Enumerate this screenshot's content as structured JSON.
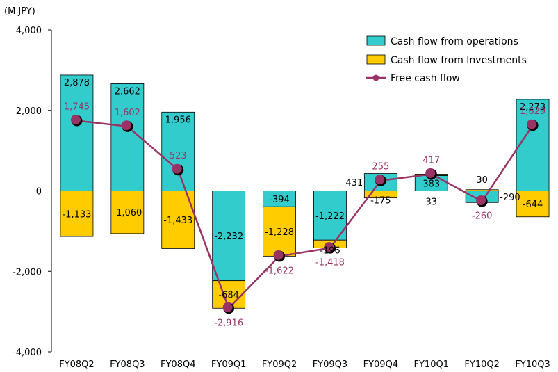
{
  "chart_data": {
    "type": "bar",
    "unit_label": "(M JPY)",
    "categories": [
      "FY08Q2",
      "FY08Q3",
      "FY08Q4",
      "FY09Q1",
      "FY09Q2",
      "FY09Q3",
      "FY09Q4",
      "FY10Q1",
      "FY10Q2",
      "FY10Q3"
    ],
    "ylim": [
      -4000,
      4000
    ],
    "yticks": [
      -4000,
      -2000,
      0,
      2000,
      4000
    ],
    "ytick_labels": [
      "-4,000",
      "-2,000",
      "0",
      "2,000",
      "4,000"
    ],
    "grid": false,
    "legend_position": "top-right",
    "series": [
      {
        "name": "Cash flow from operations",
        "kind": "bar",
        "color": "#33cccc",
        "values": [
          2878,
          2662,
          1956,
          -2232,
          -394,
          -1222,
          431,
          383,
          -290,
          2273
        ],
        "labels": [
          "2,878",
          "2,662",
          "1,956",
          "-2,232",
          "-394",
          "-1,222",
          "431",
          "383",
          "-290",
          "2,273"
        ]
      },
      {
        "name": "Cash flow from Investments",
        "kind": "bar",
        "color": "#ffcc00",
        "values": [
          -1133,
          -1060,
          -1433,
          -684,
          -1228,
          -196,
          -175,
          33,
          30,
          -644
        ],
        "labels": [
          "-1,133",
          "-1,060",
          "-1,433",
          "-684",
          "-1,228",
          "-196",
          "-175",
          "33",
          "30",
          "-644"
        ]
      },
      {
        "name": "Free cash flow",
        "kind": "line",
        "color": "#993366",
        "values": [
          1745,
          1602,
          523,
          -2916,
          -1622,
          -1418,
          255,
          417,
          -260,
          1629
        ],
        "labels": [
          "1,745",
          "1,602",
          "523",
          "-2,916",
          "-1,622",
          "-1,418",
          "255",
          "417",
          "-260",
          "1,629"
        ]
      }
    ]
  }
}
